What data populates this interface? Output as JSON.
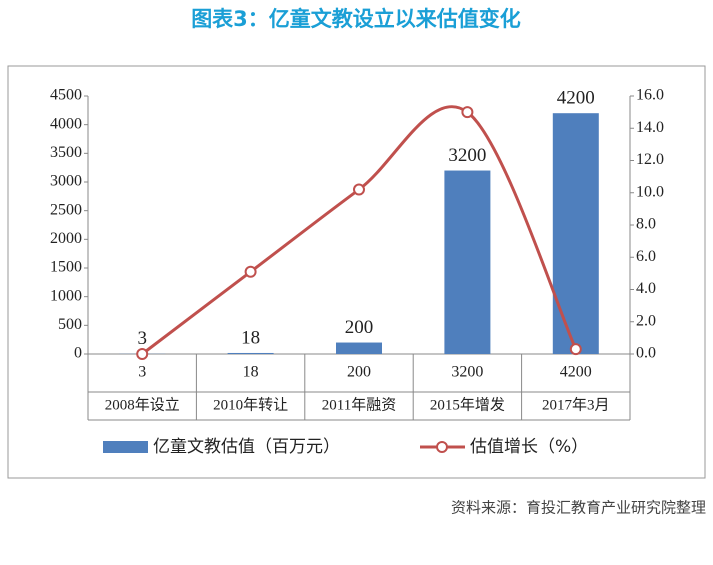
{
  "chart_data": {
    "type": "bar-line",
    "title": "图表3：亿童文教设立以来估值变化",
    "source": "资料来源：育投汇教育产业研究院整理",
    "categories": [
      "2008年设立",
      "2010年转让",
      "2011年融资",
      "2015年增发",
      "2017年3月"
    ],
    "series": [
      {
        "name": "亿童文教估值（百万元）",
        "type": "bar",
        "axis": "y",
        "color": "#4f7fbd",
        "values": [
          3,
          18,
          200,
          3200,
          4200
        ]
      },
      {
        "name": "估值增长（%）",
        "type": "line",
        "axis": "y2",
        "color": "#c0504d",
        "values": [
          0.0,
          5.1,
          10.2,
          15.0,
          0.3
        ]
      }
    ],
    "ylim": [
      0,
      4500
    ],
    "yticks": [
      0,
      500,
      1000,
      1500,
      2000,
      2500,
      3000,
      3500,
      4000,
      4500
    ],
    "y2lim": [
      0,
      16
    ],
    "y2ticks": [
      {
        "value": 0,
        "label": "0.0"
      },
      {
        "value": 2,
        "label": "2.0"
      },
      {
        "value": 4,
        "label": "4.0"
      },
      {
        "value": 6,
        "label": "6.0"
      },
      {
        "value": 8,
        "label": "8.0"
      },
      {
        "value": 10,
        "label": "10.0"
      },
      {
        "value": 12,
        "label": "12.0"
      },
      {
        "value": 14,
        "label": "14.0"
      },
      {
        "value": 16,
        "label": "16.0"
      }
    ],
    "data_table": true
  }
}
